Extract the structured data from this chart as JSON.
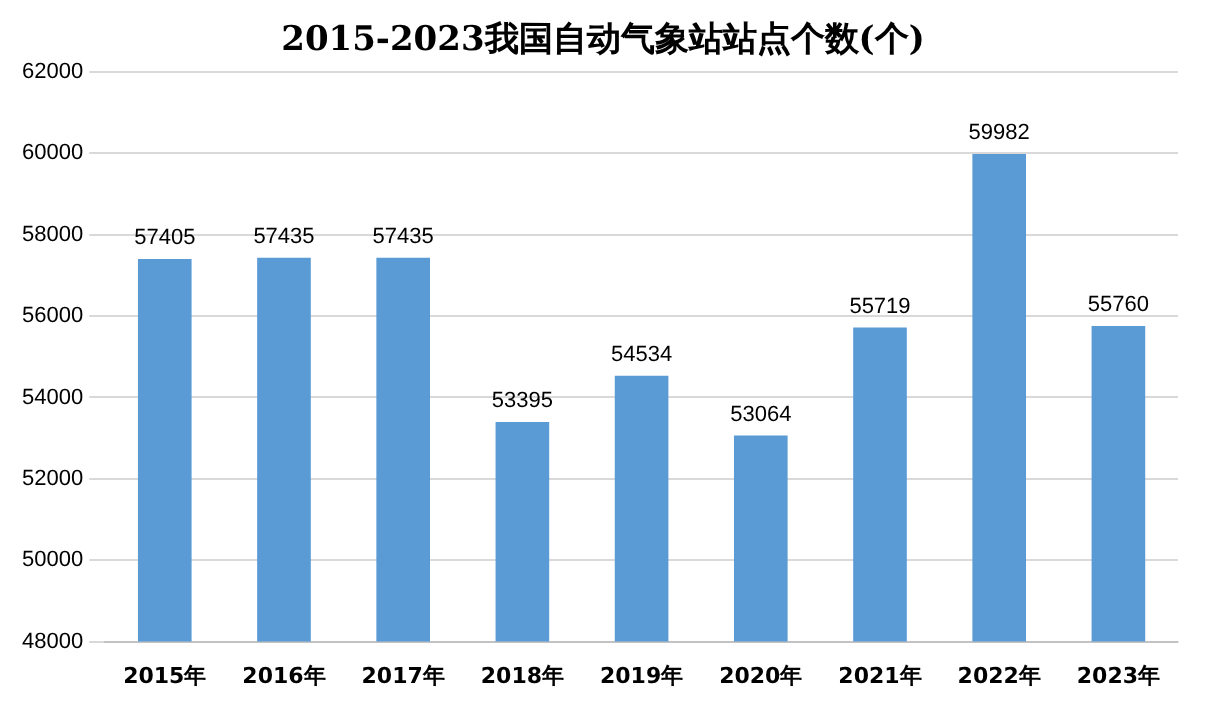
{
  "chart_data": {
    "type": "bar",
    "title": "2015-2023我国自动气象站站点个数(个)",
    "categories": [
      "2015年",
      "2016年",
      "2017年",
      "2018年",
      "2019年",
      "2020年",
      "2021年",
      "2022年",
      "2023年"
    ],
    "values": [
      57405,
      57435,
      57435,
      53395,
      54534,
      53064,
      55719,
      59982,
      55760
    ],
    "color": "#5b9bd5",
    "ylim": [
      48000,
      62000
    ],
    "yticks": [
      48000,
      50000,
      52000,
      54000,
      56000,
      58000,
      60000,
      62000
    ],
    "grid": "y",
    "data_labels": true
  }
}
